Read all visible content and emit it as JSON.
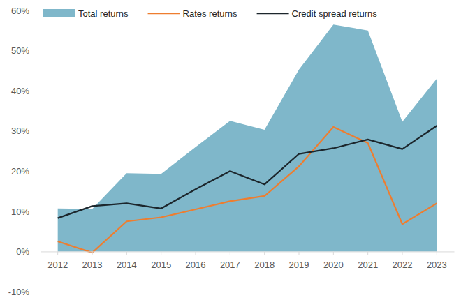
{
  "chart_data": {
    "type": "line",
    "categories": [
      "2012",
      "2013",
      "2014",
      "2015",
      "2016",
      "2017",
      "2018",
      "2019",
      "2020",
      "2021",
      "2022",
      "2023"
    ],
    "series": [
      {
        "name": "Total returns",
        "type": "area",
        "color": "#7fb7ca",
        "values": [
          10.7,
          10.6,
          19.5,
          19.3,
          26.0,
          32.5,
          30.3,
          45.3,
          56.5,
          55.0,
          32.3,
          43.0
        ]
      },
      {
        "name": "Rates returns",
        "type": "line",
        "color": "#ee7d2f",
        "values": [
          2.5,
          -0.3,
          7.5,
          8.5,
          10.5,
          12.5,
          13.8,
          21.2,
          31.0,
          27.0,
          6.8,
          12.0
        ]
      },
      {
        "name": "Credit spread returns",
        "type": "line",
        "color": "#1c262c",
        "values": [
          8.3,
          11.3,
          12.0,
          10.7,
          15.5,
          20.0,
          16.7,
          24.3,
          25.7,
          27.9,
          25.5,
          31.3
        ]
      }
    ],
    "ylim": [
      -10,
      60
    ],
    "yticks": [
      {
        "value": -10,
        "label": "-10%"
      },
      {
        "value": 0,
        "label": "0%"
      },
      {
        "value": 10,
        "label": "10%"
      },
      {
        "value": 20,
        "label": "20%"
      },
      {
        "value": 30,
        "label": "30%"
      },
      {
        "value": 40,
        "label": "40%"
      },
      {
        "value": 50,
        "label": "50%"
      },
      {
        "value": 60,
        "label": "60%"
      }
    ],
    "grid": false,
    "legend": "top"
  }
}
